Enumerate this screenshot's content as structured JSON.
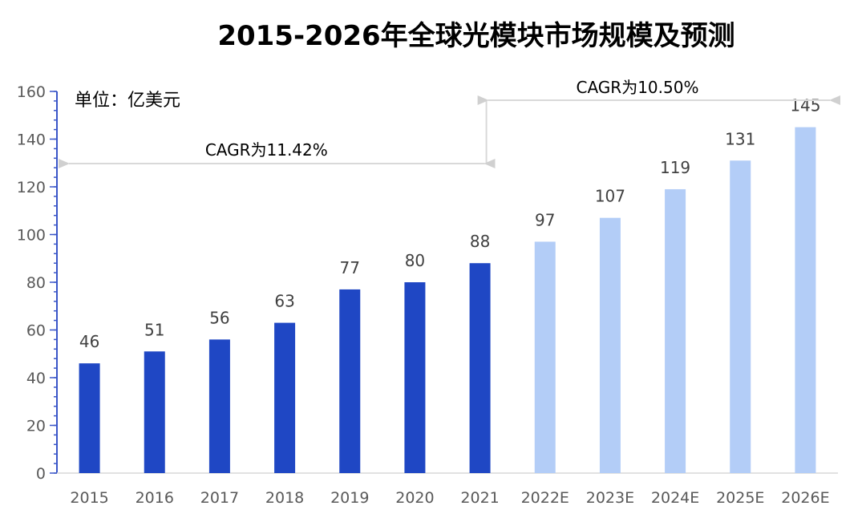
{
  "chart_data": {
    "type": "bar",
    "title": "2015-2026年全球光模块市场规模及预测",
    "unit_label": "单位：亿美元",
    "xlabel": "",
    "ylabel": "",
    "categories": [
      "2015",
      "2016",
      "2017",
      "2018",
      "2019",
      "2020",
      "2021",
      "2022E",
      "2023E",
      "2024E",
      "2025E",
      "2026E"
    ],
    "values": [
      46,
      51,
      56,
      63,
      77,
      80,
      88,
      97,
      107,
      119,
      131,
      145
    ],
    "ylim": [
      0,
      160
    ],
    "yticks": [
      0,
      20,
      40,
      60,
      80,
      100,
      120,
      140,
      160
    ],
    "grid": false,
    "legend": "none",
    "colors": {
      "actual": "#1f47c4",
      "forecast": "#b3cdf7",
      "axis": "#3a56c8",
      "arrow": "#bfbfbf"
    },
    "annotations": [
      {
        "text": "CAGR为11.42%",
        "from": "2015",
        "to": "2021"
      },
      {
        "text": "CAGR为10.50%",
        "from": "2021",
        "to": "2026E"
      }
    ]
  }
}
